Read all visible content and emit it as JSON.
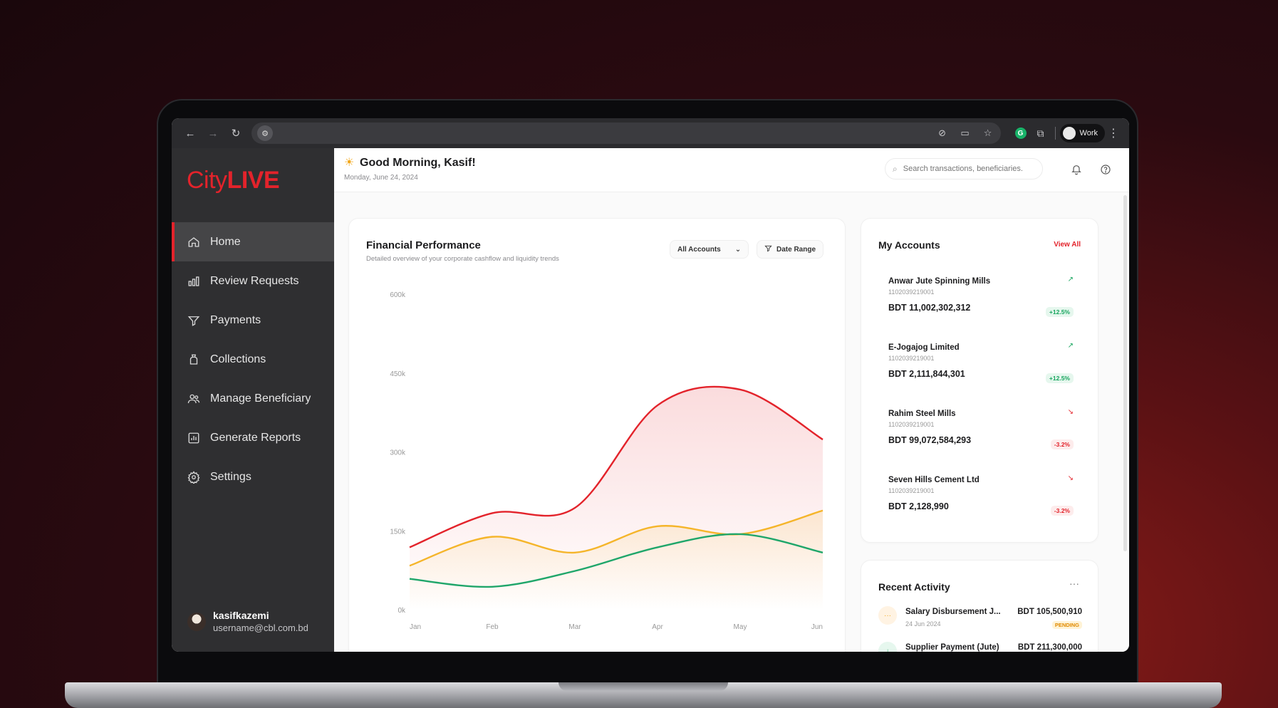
{
  "browser": {
    "profile_label": "Work"
  },
  "sidebar": {
    "logo_city": "City",
    "logo_live": "LIVE",
    "items": [
      {
        "label": "Home",
        "icon": "home-icon",
        "active": true
      },
      {
        "label": "Review Requests",
        "icon": "bar-chart-icon",
        "active": false
      },
      {
        "label": "Payments",
        "icon": "filter-icon",
        "active": false
      },
      {
        "label": "Collections",
        "icon": "bag-icon",
        "active": false
      },
      {
        "label": "Manage Beneficiary",
        "icon": "users-icon",
        "active": false
      },
      {
        "label": "Generate Reports",
        "icon": "report-icon",
        "active": false
      },
      {
        "label": "Settings",
        "icon": "gear-icon",
        "active": false
      }
    ],
    "user": {
      "name": "kasifkazemi",
      "email": "username@cbl.com.bd"
    }
  },
  "header": {
    "greeting": "Good Morning, Kasif!",
    "date": "Monday, June 24, 2024",
    "search_placeholder": "Search transactions, beneficiaries."
  },
  "financial": {
    "title": "Financial Performance",
    "subtitle": "Detailed overview of your corporate cashflow and liquidity trends",
    "accounts_filter": "All Accounts",
    "date_range": "Date Range"
  },
  "chart_data": {
    "type": "line",
    "x": [
      "Jan",
      "Feb",
      "Mar",
      "Apr",
      "May",
      "Jun"
    ],
    "ylim": [
      0,
      600000
    ],
    "yticks": [
      {
        "value": 0,
        "label": "0k"
      },
      {
        "value": 150000,
        "label": "150k"
      },
      {
        "value": 300000,
        "label": "300k"
      },
      {
        "value": 450000,
        "label": "450k"
      },
      {
        "value": 600000,
        "label": "600k"
      }
    ],
    "series": [
      {
        "color": "#e3232b",
        "values": [
          120000,
          185000,
          195000,
          390000,
          420000,
          325000
        ],
        "fill": true
      },
      {
        "color": "#f5b52a",
        "values": [
          85000,
          140000,
          110000,
          160000,
          145000,
          190000
        ],
        "fill": true
      },
      {
        "color": "#1fa66a",
        "values": [
          60000,
          45000,
          75000,
          120000,
          145000,
          110000
        ],
        "fill": false
      }
    ],
    "grid": false,
    "legend": "none"
  },
  "accounts": {
    "title": "My Accounts",
    "view_all": "View All",
    "items": [
      {
        "name": "Anwar Jute Spinning Mills",
        "number": "1102039219001",
        "balance": "BDT 11,002,302,312",
        "change": "+12.5%",
        "trend": "up"
      },
      {
        "name": "E-Jogajog Limited",
        "number": "1102039219001",
        "balance": "BDT 2,111,844,301",
        "change": "+12.5%",
        "trend": "up"
      },
      {
        "name": "Rahim Steel Mills",
        "number": "1102039219001",
        "balance": "BDT 99,072,584,293",
        "change": "-3.2%",
        "trend": "down"
      },
      {
        "name": "Seven Hills Cement Ltd",
        "number": "1102039219001",
        "balance": "BDT 2,128,990",
        "change": "-3.2%",
        "trend": "down"
      }
    ]
  },
  "activity": {
    "title": "Recent Activity",
    "items": [
      {
        "name": "Salary Disbursement J...",
        "date": "24 Jun 2024",
        "amount": "BDT 105,500,910",
        "status": "PENDING",
        "icon_glyph": "···"
      },
      {
        "name": "Supplier Payment (Jute)",
        "date": "",
        "amount": "BDT 211,300,000",
        "status": "",
        "icon_glyph": "↓"
      }
    ]
  }
}
